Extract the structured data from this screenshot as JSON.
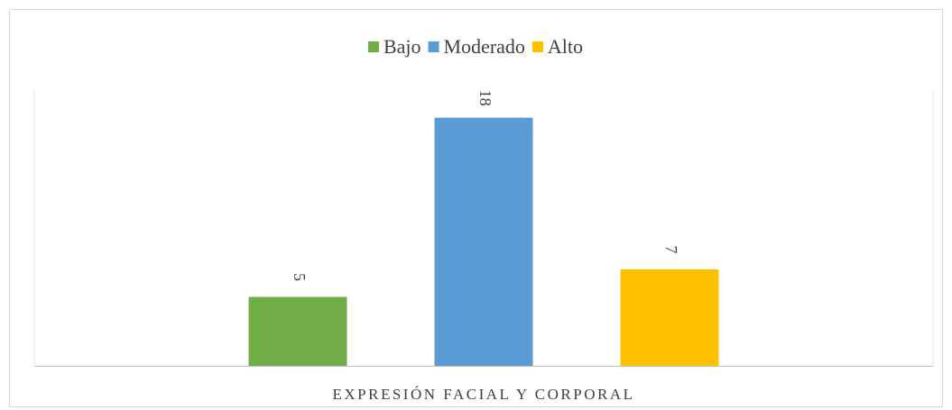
{
  "chart_data": {
    "type": "bar",
    "categories": [
      "EXPRESIÓN FACIAL Y CORPORAL"
    ],
    "series": [
      {
        "name": "Bajo",
        "color": "#70ad47",
        "values": [
          5
        ]
      },
      {
        "name": "Moderado",
        "color": "#5b9bd5",
        "values": [
          18
        ]
      },
      {
        "name": "Alto",
        "color": "#ffc000",
        "values": [
          7
        ]
      }
    ],
    "ylim": [
      0,
      20
    ],
    "legend": "top"
  }
}
